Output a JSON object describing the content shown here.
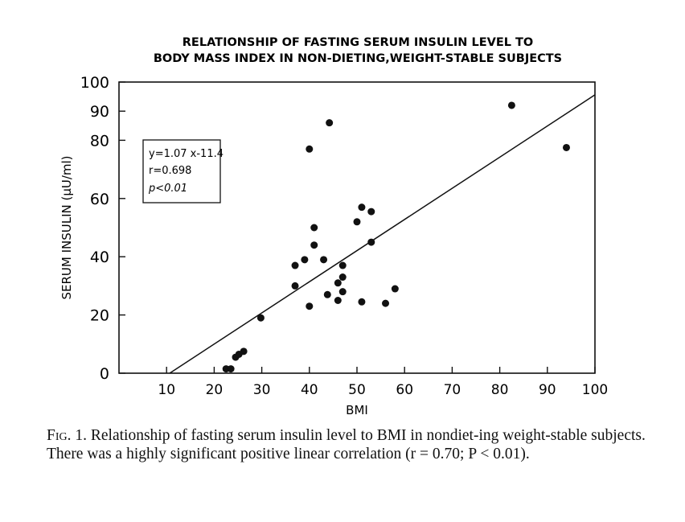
{
  "chart_data": {
    "type": "scatter",
    "title": [
      "RELATIONSHIP OF FASTING SERUM INSULIN LEVEL TO",
      "BODY MASS INDEX IN NON-DIETING,WEIGHT-STABLE SUBJECTS"
    ],
    "xlabel": "BMI",
    "ylabel": "SERUM INSULIN (μU/ml)",
    "xlim": [
      0,
      100
    ],
    "ylim": [
      0,
      100
    ],
    "xticks": [
      10,
      20,
      30,
      40,
      50,
      60,
      70,
      80,
      90,
      100
    ],
    "yticks": [
      0,
      20,
      40,
      60,
      80,
      90,
      100
    ],
    "grid": false,
    "points": [
      {
        "x": 22.5,
        "y": 1.5
      },
      {
        "x": 23.5,
        "y": 1.5
      },
      {
        "x": 24.5,
        "y": 5.5
      },
      {
        "x": 25.2,
        "y": 6.5
      },
      {
        "x": 26.2,
        "y": 7.5
      },
      {
        "x": 29.8,
        "y": 19
      },
      {
        "x": 37,
        "y": 30
      },
      {
        "x": 37,
        "y": 37
      },
      {
        "x": 39,
        "y": 39
      },
      {
        "x": 40,
        "y": 23
      },
      {
        "x": 40,
        "y": 77
      },
      {
        "x": 41,
        "y": 50
      },
      {
        "x": 41,
        "y": 44
      },
      {
        "x": 43,
        "y": 39
      },
      {
        "x": 43.8,
        "y": 27
      },
      {
        "x": 44.2,
        "y": 86
      },
      {
        "x": 46,
        "y": 25
      },
      {
        "x": 46,
        "y": 31
      },
      {
        "x": 47,
        "y": 28
      },
      {
        "x": 47,
        "y": 33
      },
      {
        "x": 47,
        "y": 37
      },
      {
        "x": 50,
        "y": 52
      },
      {
        "x": 51,
        "y": 24.5
      },
      {
        "x": 51,
        "y": 57
      },
      {
        "x": 53,
        "y": 55.5
      },
      {
        "x": 53,
        "y": 45
      },
      {
        "x": 56,
        "y": 24
      },
      {
        "x": 58,
        "y": 29
      },
      {
        "x": 82.5,
        "y": 92
      },
      {
        "x": 94,
        "y": 77.5
      }
    ],
    "regression": {
      "slope": 1.07,
      "intercept": -11.4
    },
    "annotation": [
      "y=1.07 x-11.4",
      "r=0.698",
      "p<0.01"
    ]
  },
  "caption": {
    "label": "Fig. 1.",
    "text": " Relationship of fasting serum insulin level to BMI in nondiet-ing weight-stable subjects. There was a highly significant positive linear correlation (r = 0.70; P < 0.01)."
  }
}
